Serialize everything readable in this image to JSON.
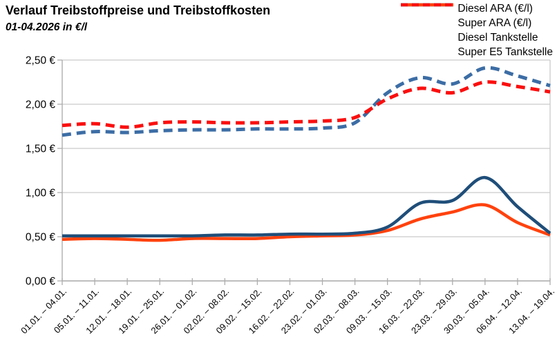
{
  "header": {
    "title": "Verlauf Treibstoffpreise und Treibstoffkosten",
    "subtitle": "01-04.2026 in €/l"
  },
  "legend": [
    {
      "label": "Diesel ARA (€/l)",
      "color": "#1F4E79",
      "style": "solid"
    },
    {
      "label": "Super ARA (€/l)",
      "color": "#FF420E",
      "style": "solid"
    },
    {
      "label": "Diesel Tankstelle",
      "color": "#3C6DA5",
      "style": "dashed"
    },
    {
      "label": "Super E5 Tankstelle",
      "color": "#FA0F0F",
      "style": "dashed"
    }
  ],
  "chart_data": {
    "type": "line",
    "title": "Verlauf Treibstoffpreise und Treibstoffkosten",
    "subtitle": "01-04.2026 in €/l",
    "unit": "€/l",
    "categories": [
      "01.01. – 04.01.",
      "05.01. – 11.01.",
      "12.01. – 18.01.",
      "19.01. – 25.01.",
      "26.01. – 01.02.",
      "02.02. – 08.02.",
      "09.02. – 15.02.",
      "16.02. – 22.02.",
      "23.02. – 01.03.",
      "02.03. – 08.03.",
      "09.03. – 15.03.",
      "16.03. – 22.03.",
      "23.03. – 29.03.",
      "30.03. – 05.04.",
      "06.04. – 12.04.",
      "13.04. – 19.04."
    ],
    "series": [
      {
        "name": "Diesel Tankstelle",
        "style": "dashed",
        "color": "#3C6DA5",
        "values": [
          1.65,
          1.69,
          1.68,
          1.7,
          1.71,
          1.71,
          1.72,
          1.72,
          1.73,
          1.79,
          2.13,
          2.3,
          2.23,
          2.41,
          2.32,
          2.21
        ]
      },
      {
        "name": "Super E5 Tankstelle",
        "style": "dashed",
        "color": "#FA0F0F",
        "values": [
          1.76,
          1.78,
          1.74,
          1.79,
          1.8,
          1.79,
          1.79,
          1.8,
          1.81,
          1.85,
          2.06,
          2.18,
          2.13,
          2.25,
          2.2,
          2.14
        ]
      },
      {
        "name": "Super ARA (€/l)",
        "style": "solid",
        "color": "#FF420E",
        "values": [
          0.47,
          0.48,
          0.47,
          0.46,
          0.48,
          0.48,
          0.48,
          0.5,
          0.51,
          0.52,
          0.57,
          0.7,
          0.78,
          0.86,
          0.66,
          0.52
        ]
      },
      {
        "name": "Diesel ARA (€/l)",
        "style": "solid",
        "color": "#1F4E79",
        "values": [
          0.51,
          0.51,
          0.51,
          0.51,
          0.51,
          0.52,
          0.52,
          0.53,
          0.53,
          0.54,
          0.61,
          0.88,
          0.91,
          1.17,
          0.84,
          0.54
        ]
      }
    ],
    "ylim": [
      0,
      2.5
    ],
    "ytick_step": 0.5,
    "ytick_labels": [
      "0,00 €",
      "0,50 €",
      "1,00 €",
      "1,50 €",
      "2,00 €",
      "2,50 €"
    ],
    "grid": true,
    "legend_position": "top-right",
    "axis_color": "#ADADAD",
    "grid_color": "#C9C9C9"
  }
}
